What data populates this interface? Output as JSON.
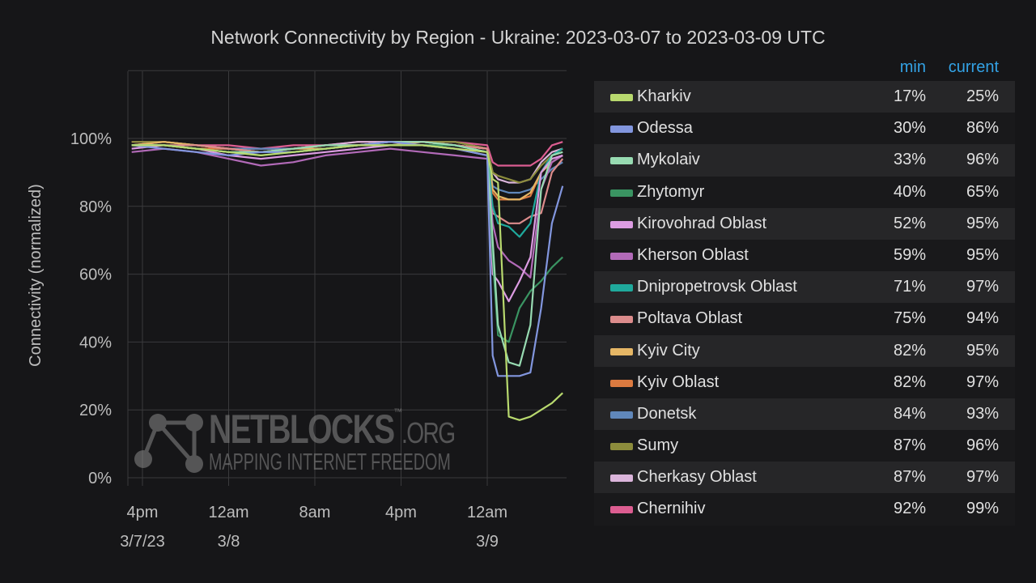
{
  "chart_data": {
    "type": "line",
    "title": "Network Connectivity by Region - Ukraine: 2023-03-07 to 2023-03-09 UTC",
    "ylabel": "Connectivity (normalized)",
    "xlabel": "",
    "ylim": [
      0,
      120
    ],
    "yticks": [
      "0%",
      "20%",
      "40%",
      "60%",
      "80%",
      "100%"
    ],
    "ytick_values": [
      0,
      20,
      40,
      60,
      80,
      100
    ],
    "xticks": [
      {
        "t": "2023-03-07 16:00",
        "line1": "4pm",
        "line2": "3/7/23"
      },
      {
        "t": "2023-03-08 00:00",
        "line1": "12am",
        "line2": "3/8"
      },
      {
        "t": "2023-03-08 08:00",
        "line1": "8am",
        "line2": ""
      },
      {
        "t": "2023-03-08 16:00",
        "line1": "4pm",
        "line2": ""
      },
      {
        "t": "2023-03-09 00:00",
        "line1": "12am",
        "line2": "3/9"
      }
    ],
    "xlim": [
      "2023-03-07 14:40",
      "2023-03-09 07:25"
    ],
    "grid": true,
    "legend_placement": "right",
    "legend_columns": {
      "min": "min",
      "current": "current"
    },
    "x": [
      "2023-03-07 15:00",
      "2023-03-07 18:00",
      "2023-03-07 21:00",
      "2023-03-08 00:00",
      "2023-03-08 03:00",
      "2023-03-08 06:00",
      "2023-03-08 09:00",
      "2023-03-08 12:00",
      "2023-03-08 15:00",
      "2023-03-08 18:00",
      "2023-03-08 21:00",
      "2023-03-09 00:00",
      "2023-03-09 00:30",
      "2023-03-09 01:00",
      "2023-03-09 02:00",
      "2023-03-09 03:00",
      "2023-03-09 04:00",
      "2023-03-09 05:00",
      "2023-03-09 06:00",
      "2023-03-09 07:00"
    ],
    "series": [
      {
        "name": "Kharkiv",
        "min": "17%",
        "current": "25%",
        "color": "#b8d96e",
        "values": [
          98,
          98,
          97,
          96,
          95,
          96,
          97,
          98,
          98,
          98,
          97,
          96,
          88,
          87,
          18,
          17,
          18,
          20,
          22,
          25
        ]
      },
      {
        "name": "Odessa",
        "min": "30%",
        "current": "86%",
        "color": "#8296de",
        "values": [
          98,
          97,
          96,
          95,
          96,
          96,
          97,
          98,
          99,
          98,
          97,
          95,
          36,
          30,
          30,
          30,
          31,
          50,
          75,
          86
        ]
      },
      {
        "name": "Mykolaiv",
        "min": "33%",
        "current": "96%",
        "color": "#98dbb2",
        "values": [
          98,
          98,
          97,
          96,
          96,
          97,
          98,
          98,
          99,
          99,
          98,
          96,
          70,
          45,
          34,
          33,
          45,
          85,
          95,
          96
        ]
      },
      {
        "name": "Zhytomyr",
        "min": "40%",
        "current": "65%",
        "color": "#3a9462",
        "values": [
          98,
          98,
          97,
          96,
          95,
          96,
          97,
          98,
          98,
          98,
          98,
          96,
          65,
          42,
          40,
          50,
          55,
          58,
          62,
          65
        ]
      },
      {
        "name": "Kirovohrad Oblast",
        "min": "52%",
        "current": "95%",
        "color": "#dc9ce2",
        "values": [
          97,
          98,
          97,
          95,
          94,
          95,
          96,
          97,
          98,
          98,
          97,
          95,
          60,
          58,
          52,
          58,
          65,
          90,
          94,
          95
        ]
      },
      {
        "name": "Kherson Oblast",
        "min": "59%",
        "current": "95%",
        "color": "#b26ab8",
        "values": [
          96,
          97,
          96,
          94,
          92,
          93,
          95,
          96,
          97,
          96,
          95,
          94,
          75,
          68,
          64,
          62,
          59,
          85,
          93,
          95
        ]
      },
      {
        "name": "Dnipropetrovsk Oblast",
        "min": "71%",
        "current": "97%",
        "color": "#1fa99c",
        "values": [
          98,
          98,
          97,
          96,
          96,
          96,
          97,
          98,
          98,
          98,
          98,
          96,
          80,
          75,
          74,
          71,
          75,
          90,
          95,
          97
        ]
      },
      {
        "name": "Poltava Oblast",
        "min": "75%",
        "current": "94%",
        "color": "#dc8c8c",
        "values": [
          98,
          98,
          98,
          97,
          96,
          97,
          98,
          98,
          99,
          99,
          98,
          97,
          78,
          77,
          75,
          75,
          77,
          78,
          90,
          94
        ]
      },
      {
        "name": "Kyiv City",
        "min": "82%",
        "current": "95%",
        "color": "#e6b766",
        "values": [
          98,
          99,
          98,
          97,
          96,
          97,
          97,
          98,
          98,
          99,
          98,
          97,
          85,
          83,
          82,
          82,
          84,
          90,
          93,
          95
        ]
      },
      {
        "name": "Kyiv Oblast",
        "min": "82%",
        "current": "97%",
        "color": "#db7a40",
        "values": [
          98,
          98,
          97,
          97,
          96,
          96,
          97,
          98,
          98,
          98,
          98,
          97,
          84,
          82,
          82,
          82,
          83,
          90,
          95,
          97
        ]
      },
      {
        "name": "Donetsk",
        "min": "84%",
        "current": "93%",
        "color": "#6087ba",
        "values": [
          98,
          98,
          97,
          97,
          97,
          97,
          98,
          98,
          98,
          99,
          98,
          97,
          86,
          85,
          84,
          84,
          85,
          88,
          91,
          93
        ]
      },
      {
        "name": "Sumy",
        "min": "87%",
        "current": "96%",
        "color": "#8c8c3c",
        "values": [
          99,
          99,
          98,
          97,
          96,
          97,
          98,
          98,
          99,
          99,
          99,
          97,
          90,
          89,
          88,
          87,
          88,
          92,
          95,
          96
        ]
      },
      {
        "name": "Cherkasy Oblast",
        "min": "87%",
        "current": "97%",
        "color": "#dbb5db",
        "values": [
          98,
          99,
          98,
          97,
          97,
          97,
          98,
          99,
          99,
          99,
          99,
          97,
          90,
          88,
          87,
          87,
          88,
          93,
          96,
          97
        ]
      },
      {
        "name": "Chernihiv",
        "min": "92%",
        "current": "99%",
        "color": "#dc5d91",
        "values": [
          99,
          99,
          98,
          98,
          97,
          98,
          98,
          99,
          99,
          99,
          99,
          98,
          93,
          92,
          92,
          92,
          92,
          94,
          98,
          99
        ]
      }
    ]
  },
  "watermark": {
    "brand": "NETBLOCKS",
    "tm": "™",
    "domain": ".ORG",
    "tagline": "MAPPING INTERNET FREEDOM"
  }
}
